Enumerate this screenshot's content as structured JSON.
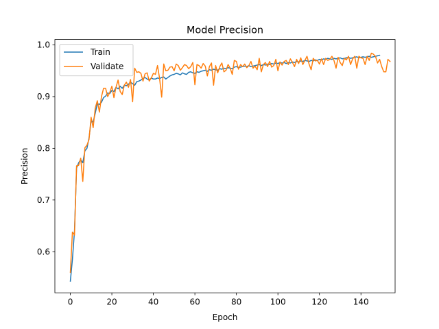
{
  "chart_data": {
    "type": "line",
    "title": "Model Precision",
    "xlabel": "Epoch",
    "ylabel": "Precision",
    "xlim": [
      -7.45,
      156.45
    ],
    "ylim": [
      0.5205,
      1.0105
    ],
    "xticks": [
      0,
      20,
      40,
      60,
      80,
      100,
      120,
      140
    ],
    "yticks": [
      0.6,
      0.7,
      0.8,
      0.9,
      1.0
    ],
    "xtick_labels": [
      "0",
      "20",
      "40",
      "60",
      "80",
      "100",
      "120",
      "140"
    ],
    "ytick_labels": [
      "0.6",
      "0.7",
      "0.8",
      "0.9",
      "1.0"
    ],
    "legend": {
      "position": "upper-left",
      "entries": [
        "Train",
        "Validate"
      ]
    },
    "series": [
      {
        "name": "Train",
        "color": "#1f77b4",
        "values": [
          0.543,
          0.585,
          0.64,
          0.762,
          0.772,
          0.778,
          0.772,
          0.795,
          0.8,
          0.82,
          0.853,
          0.851,
          0.868,
          0.886,
          0.885,
          0.889,
          0.898,
          0.901,
          0.907,
          0.906,
          0.912,
          0.91,
          0.918,
          0.915,
          0.92,
          0.916,
          0.922,
          0.921,
          0.924,
          0.928,
          0.925,
          0.922,
          0.929,
          0.93,
          0.932,
          0.935,
          0.937,
          0.934,
          0.932,
          0.936,
          0.934,
          0.934,
          0.936,
          0.935,
          0.937,
          0.938,
          0.934,
          0.937,
          0.94,
          0.942,
          0.943,
          0.945,
          0.944,
          0.942,
          0.946,
          0.944,
          0.943,
          0.947,
          0.948,
          0.946,
          0.945,
          0.948,
          0.947,
          0.949,
          0.95,
          0.951,
          0.949,
          0.952,
          0.951,
          0.953,
          0.952,
          0.951,
          0.954,
          0.953,
          0.955,
          0.954,
          0.956,
          0.955,
          0.954,
          0.957,
          0.958,
          0.956,
          0.957,
          0.958,
          0.959,
          0.958,
          0.96,
          0.958,
          0.959,
          0.96,
          0.961,
          0.962,
          0.96,
          0.962,
          0.961,
          0.963,
          0.962,
          0.964,
          0.963,
          0.965,
          0.964,
          0.966,
          0.965,
          0.966,
          0.964,
          0.966,
          0.965,
          0.967,
          0.966,
          0.968,
          0.967,
          0.969,
          0.968,
          0.97,
          0.969,
          0.968,
          0.97,
          0.969,
          0.971,
          0.97,
          0.972,
          0.971,
          0.973,
          0.972,
          0.974,
          0.973,
          0.972,
          0.974,
          0.973,
          0.974,
          0.975,
          0.973,
          0.974,
          0.975,
          0.976,
          0.974,
          0.975,
          0.976,
          0.977,
          0.975,
          0.976,
          0.977,
          0.976,
          0.977,
          0.978,
          0.976,
          0.977,
          0.978,
          0.979,
          0.98
        ]
      },
      {
        "name": "Validate",
        "color": "#ff7f0e",
        "values": [
          0.56,
          0.638,
          0.632,
          0.766,
          0.767,
          0.781,
          0.736,
          0.801,
          0.806,
          0.817,
          0.86,
          0.84,
          0.878,
          0.892,
          0.87,
          0.9,
          0.916,
          0.916,
          0.9,
          0.908,
          0.92,
          0.898,
          0.918,
          0.932,
          0.91,
          0.904,
          0.922,
          0.928,
          0.918,
          0.933,
          0.89,
          0.955,
          0.947,
          0.948,
          0.945,
          0.93,
          0.944,
          0.946,
          0.93,
          0.936,
          0.945,
          0.943,
          0.96,
          0.935,
          0.899,
          0.963,
          0.95,
          0.951,
          0.957,
          0.958,
          0.95,
          0.963,
          0.96,
          0.951,
          0.956,
          0.962,
          0.96,
          0.954,
          0.958,
          0.966,
          0.923,
          0.962,
          0.96,
          0.955,
          0.964,
          0.959,
          0.94,
          0.958,
          0.965,
          0.922,
          0.96,
          0.946,
          0.958,
          0.965,
          0.948,
          0.951,
          0.962,
          0.955,
          0.943,
          0.97,
          0.968,
          0.953,
          0.962,
          0.958,
          0.963,
          0.956,
          0.96,
          0.968,
          0.955,
          0.959,
          0.952,
          0.974,
          0.948,
          0.962,
          0.966,
          0.958,
          0.968,
          0.957,
          0.96,
          0.972,
          0.95,
          0.967,
          0.961,
          0.968,
          0.97,
          0.962,
          0.973,
          0.966,
          0.958,
          0.972,
          0.964,
          0.975,
          0.962,
          0.97,
          0.978,
          0.963,
          0.952,
          0.974,
          0.969,
          0.97,
          0.963,
          0.973,
          0.962,
          0.974,
          0.97,
          0.972,
          0.978,
          0.97,
          0.955,
          0.976,
          0.966,
          0.96,
          0.974,
          0.971,
          0.978,
          0.962,
          0.973,
          0.978,
          0.955,
          0.978,
          0.975,
          0.974,
          0.962,
          0.978,
          0.97,
          0.984,
          0.982,
          0.978,
          0.965,
          0.972,
          0.958,
          0.948,
          0.948,
          0.972,
          0.968
        ]
      }
    ]
  }
}
